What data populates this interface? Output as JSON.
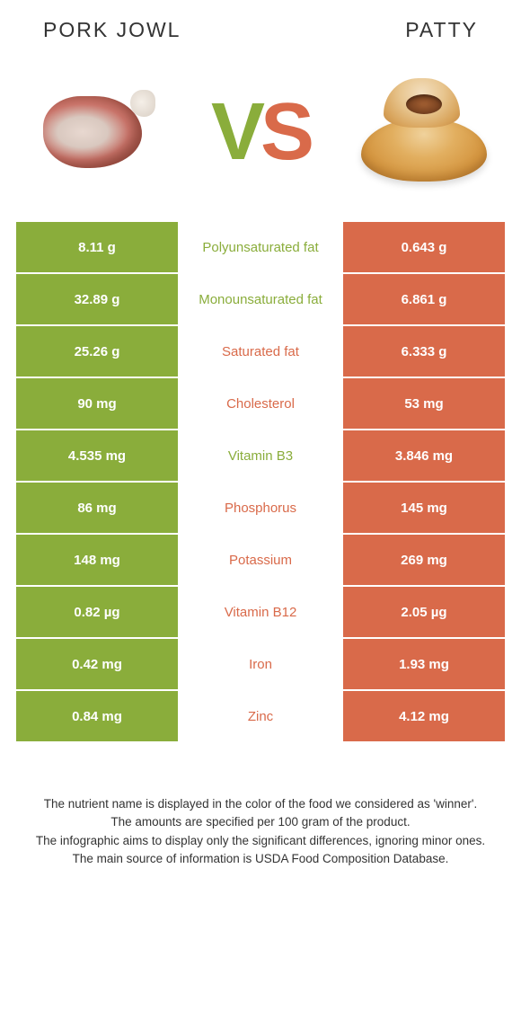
{
  "header": {
    "left_title": "Pork jowl",
    "right_title": "Patty",
    "vs_v": "V",
    "vs_s": "S"
  },
  "colors": {
    "left": "#8aad3b",
    "right": "#d96a4a",
    "text": "#333333",
    "bg": "#ffffff"
  },
  "rows": [
    {
      "left": "8.11 g",
      "label": "Polyunsaturated fat",
      "right": "0.643 g",
      "winner": "left"
    },
    {
      "left": "32.89 g",
      "label": "Monounsaturated fat",
      "right": "6.861 g",
      "winner": "left"
    },
    {
      "left": "25.26 g",
      "label": "Saturated fat",
      "right": "6.333 g",
      "winner": "right"
    },
    {
      "left": "90 mg",
      "label": "Cholesterol",
      "right": "53 mg",
      "winner": "right"
    },
    {
      "left": "4.535 mg",
      "label": "Vitamin B3",
      "right": "3.846 mg",
      "winner": "left"
    },
    {
      "left": "86 mg",
      "label": "Phosphorus",
      "right": "145 mg",
      "winner": "right"
    },
    {
      "left": "148 mg",
      "label": "Potassium",
      "right": "269 mg",
      "winner": "right"
    },
    {
      "left": "0.82 µg",
      "label": "Vitamin B12",
      "right": "2.05 µg",
      "winner": "right"
    },
    {
      "left": "0.42 mg",
      "label": "Iron",
      "right": "1.93 mg",
      "winner": "right"
    },
    {
      "left": "0.84 mg",
      "label": "Zinc",
      "right": "4.12 mg",
      "winner": "right"
    }
  ],
  "footer": {
    "line1": "The nutrient name is displayed in the color of the food we considered as 'winner'.",
    "line2": "The amounts are specified per 100 gram of the product.",
    "line3": "The infographic aims to display only the significant differences, ignoring minor ones.",
    "line4": "The main source of information is USDA Food Composition Database."
  }
}
